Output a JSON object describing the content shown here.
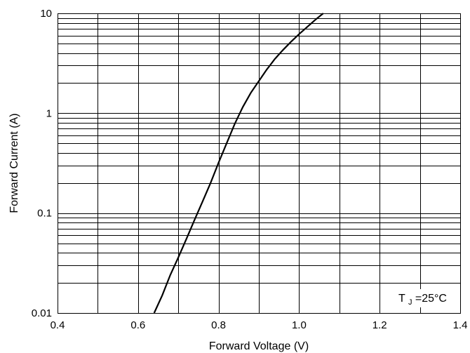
{
  "chart_data": {
    "type": "line",
    "title": "",
    "xlabel": "Forward Voltage (V)",
    "ylabel": "Forward Current (A)",
    "xlim": [
      0.4,
      1.4
    ],
    "ylim": [
      0.01,
      10
    ],
    "yscale": "log",
    "grid": true,
    "x_ticks": [
      0.4,
      0.6,
      0.8,
      1.0,
      1.2,
      1.4
    ],
    "x_tick_labels": [
      "0.4",
      "0.6",
      "0.8",
      "1.0",
      "1.2",
      "1.4"
    ],
    "y_ticks": [
      0.01,
      0.1,
      1,
      10
    ],
    "y_tick_labels": [
      "0.01",
      "0.1",
      "1",
      "10"
    ],
    "series": [
      {
        "x": [
          0.64,
          0.66,
          0.68,
          0.7,
          0.72,
          0.74,
          0.76,
          0.78,
          0.8,
          0.82,
          0.84,
          0.86,
          0.88,
          0.9,
          0.92,
          0.94,
          0.96,
          0.98,
          1.0,
          1.02,
          1.04,
          1.06
        ],
        "y": [
          0.01,
          0.015,
          0.024,
          0.036,
          0.055,
          0.085,
          0.13,
          0.2,
          0.32,
          0.5,
          0.78,
          1.15,
          1.6,
          2.1,
          2.75,
          3.5,
          4.3,
          5.2,
          6.2,
          7.3,
          8.6,
          10
        ]
      }
    ],
    "annotation": {
      "prefix": "T",
      "subscript": "J",
      "suffix": "=25°C"
    }
  }
}
